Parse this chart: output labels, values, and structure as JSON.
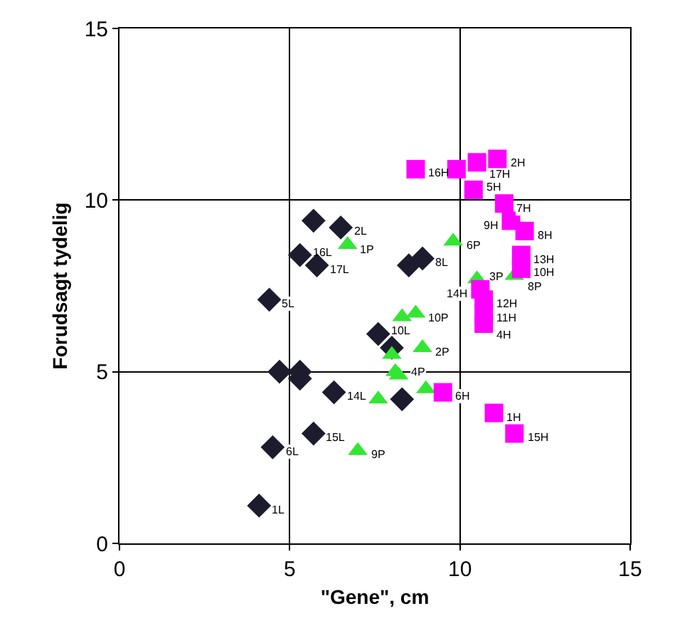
{
  "chart_data": {
    "type": "scatter",
    "xlabel": "\"Gene\", cm",
    "ylabel": "Forudsagt tydelig",
    "xlim": [
      0,
      15
    ],
    "ylim": [
      0,
      15
    ],
    "xticks": [
      0,
      5,
      10,
      15
    ],
    "yticks": [
      0,
      5,
      10,
      15
    ],
    "grid": true,
    "series": [
      {
        "color": "#1c1c2e",
        "marker": "diamond",
        "x": [
          5.7,
          6.5,
          5.3,
          5.8,
          8.5,
          8.9,
          4.4,
          7.6,
          8.0,
          4.7,
          5.3,
          5.3,
          6.3,
          8.3,
          5.7,
          4.5,
          4.1
        ],
        "values": [
          9.4,
          9.2,
          8.4,
          8.1,
          8.1,
          8.3,
          7.1,
          6.1,
          5.7,
          5.0,
          5.0,
          4.8,
          4.4,
          4.2,
          3.2,
          2.8,
          1.1
        ]
      },
      {
        "color": "#33e633",
        "marker": "triangle",
        "x": [
          6.7,
          9.8,
          10.5,
          11.6,
          8.3,
          8.7,
          8.0,
          8.9,
          8.1,
          8.2,
          9.0,
          7.6,
          7.0
        ],
        "values": [
          8.7,
          8.8,
          7.7,
          7.8,
          6.6,
          6.7,
          5.5,
          5.7,
          5.0,
          4.9,
          4.5,
          4.2,
          2.7
        ]
      },
      {
        "color": "#ff00ff",
        "marker": "square",
        "x": [
          8.7,
          9.9,
          10.5,
          11.1,
          10.4,
          11.3,
          11.5,
          11.9,
          11.8,
          11.8,
          10.6,
          10.7,
          10.7,
          10.7,
          9.5,
          11.0,
          11.6
        ],
        "values": [
          10.9,
          10.9,
          11.1,
          11.2,
          10.3,
          9.9,
          9.4,
          9.1,
          8.4,
          8.0,
          7.4,
          7.1,
          6.7,
          6.4,
          4.4,
          3.8,
          3.2
        ]
      }
    ],
    "annotations": [
      {
        "text": "2L",
        "x": 6.5,
        "y": 9.2
      },
      {
        "text": "16L",
        "x": 5.3,
        "y": 8.4
      },
      {
        "text": "17L",
        "x": 5.8,
        "y": 8.1
      },
      {
        "text": "8L",
        "x": 8.9,
        "y": 8.3
      },
      {
        "text": "5L",
        "x": 4.4,
        "y": 7.1
      },
      {
        "text": "10L",
        "x": 7.6,
        "y": 6.1
      },
      {
        "text": "14L",
        "x": 6.3,
        "y": 4.4
      },
      {
        "text": "15L",
        "x": 5.7,
        "y": 3.2
      },
      {
        "text": "6L",
        "x": 4.5,
        "y": 2.8
      },
      {
        "text": "1L",
        "x": 4.1,
        "y": 1.1
      },
      {
        "text": "1P",
        "x": 6.7,
        "y": 8.7
      },
      {
        "text": "6P",
        "x": 9.8,
        "y": 8.8
      },
      {
        "text": "3P",
        "x": 10.5,
        "y": 7.7
      },
      {
        "text": "8P",
        "x": 11.6,
        "y": 7.8
      },
      {
        "text": "10P",
        "x": 8.7,
        "y": 6.7
      },
      {
        "text": "2P",
        "x": 8.9,
        "y": 5.7
      },
      {
        "text": "4P",
        "x": 8.2,
        "y": 4.9
      },
      {
        "text": "9P",
        "x": 7.0,
        "y": 2.7
      },
      {
        "text": "16H",
        "x": 8.7,
        "y": 10.9
      },
      {
        "text": "17H",
        "x": 10.5,
        "y": 11.1
      },
      {
        "text": "2H",
        "x": 11.1,
        "y": 11.2
      },
      {
        "text": "5H",
        "x": 10.4,
        "y": 10.3
      },
      {
        "text": "7H",
        "x": 11.3,
        "y": 9.9
      },
      {
        "text": "9H",
        "x": 11.5,
        "y": 9.4
      },
      {
        "text": "8H",
        "x": 11.9,
        "y": 9.1
      },
      {
        "text": "13H",
        "x": 11.8,
        "y": 8.4
      },
      {
        "text": "10H",
        "x": 11.8,
        "y": 8.0
      },
      {
        "text": "14H",
        "x": 10.6,
        "y": 7.4
      },
      {
        "text": "12H",
        "x": 10.7,
        "y": 7.1
      },
      {
        "text": "11H",
        "x": 10.7,
        "y": 6.7
      },
      {
        "text": "4H",
        "x": 10.7,
        "y": 6.4
      },
      {
        "text": "6H",
        "x": 9.5,
        "y": 4.4
      },
      {
        "text": "1H",
        "x": 11.0,
        "y": 3.8
      },
      {
        "text": "15H",
        "x": 11.6,
        "y": 3.2
      }
    ]
  }
}
